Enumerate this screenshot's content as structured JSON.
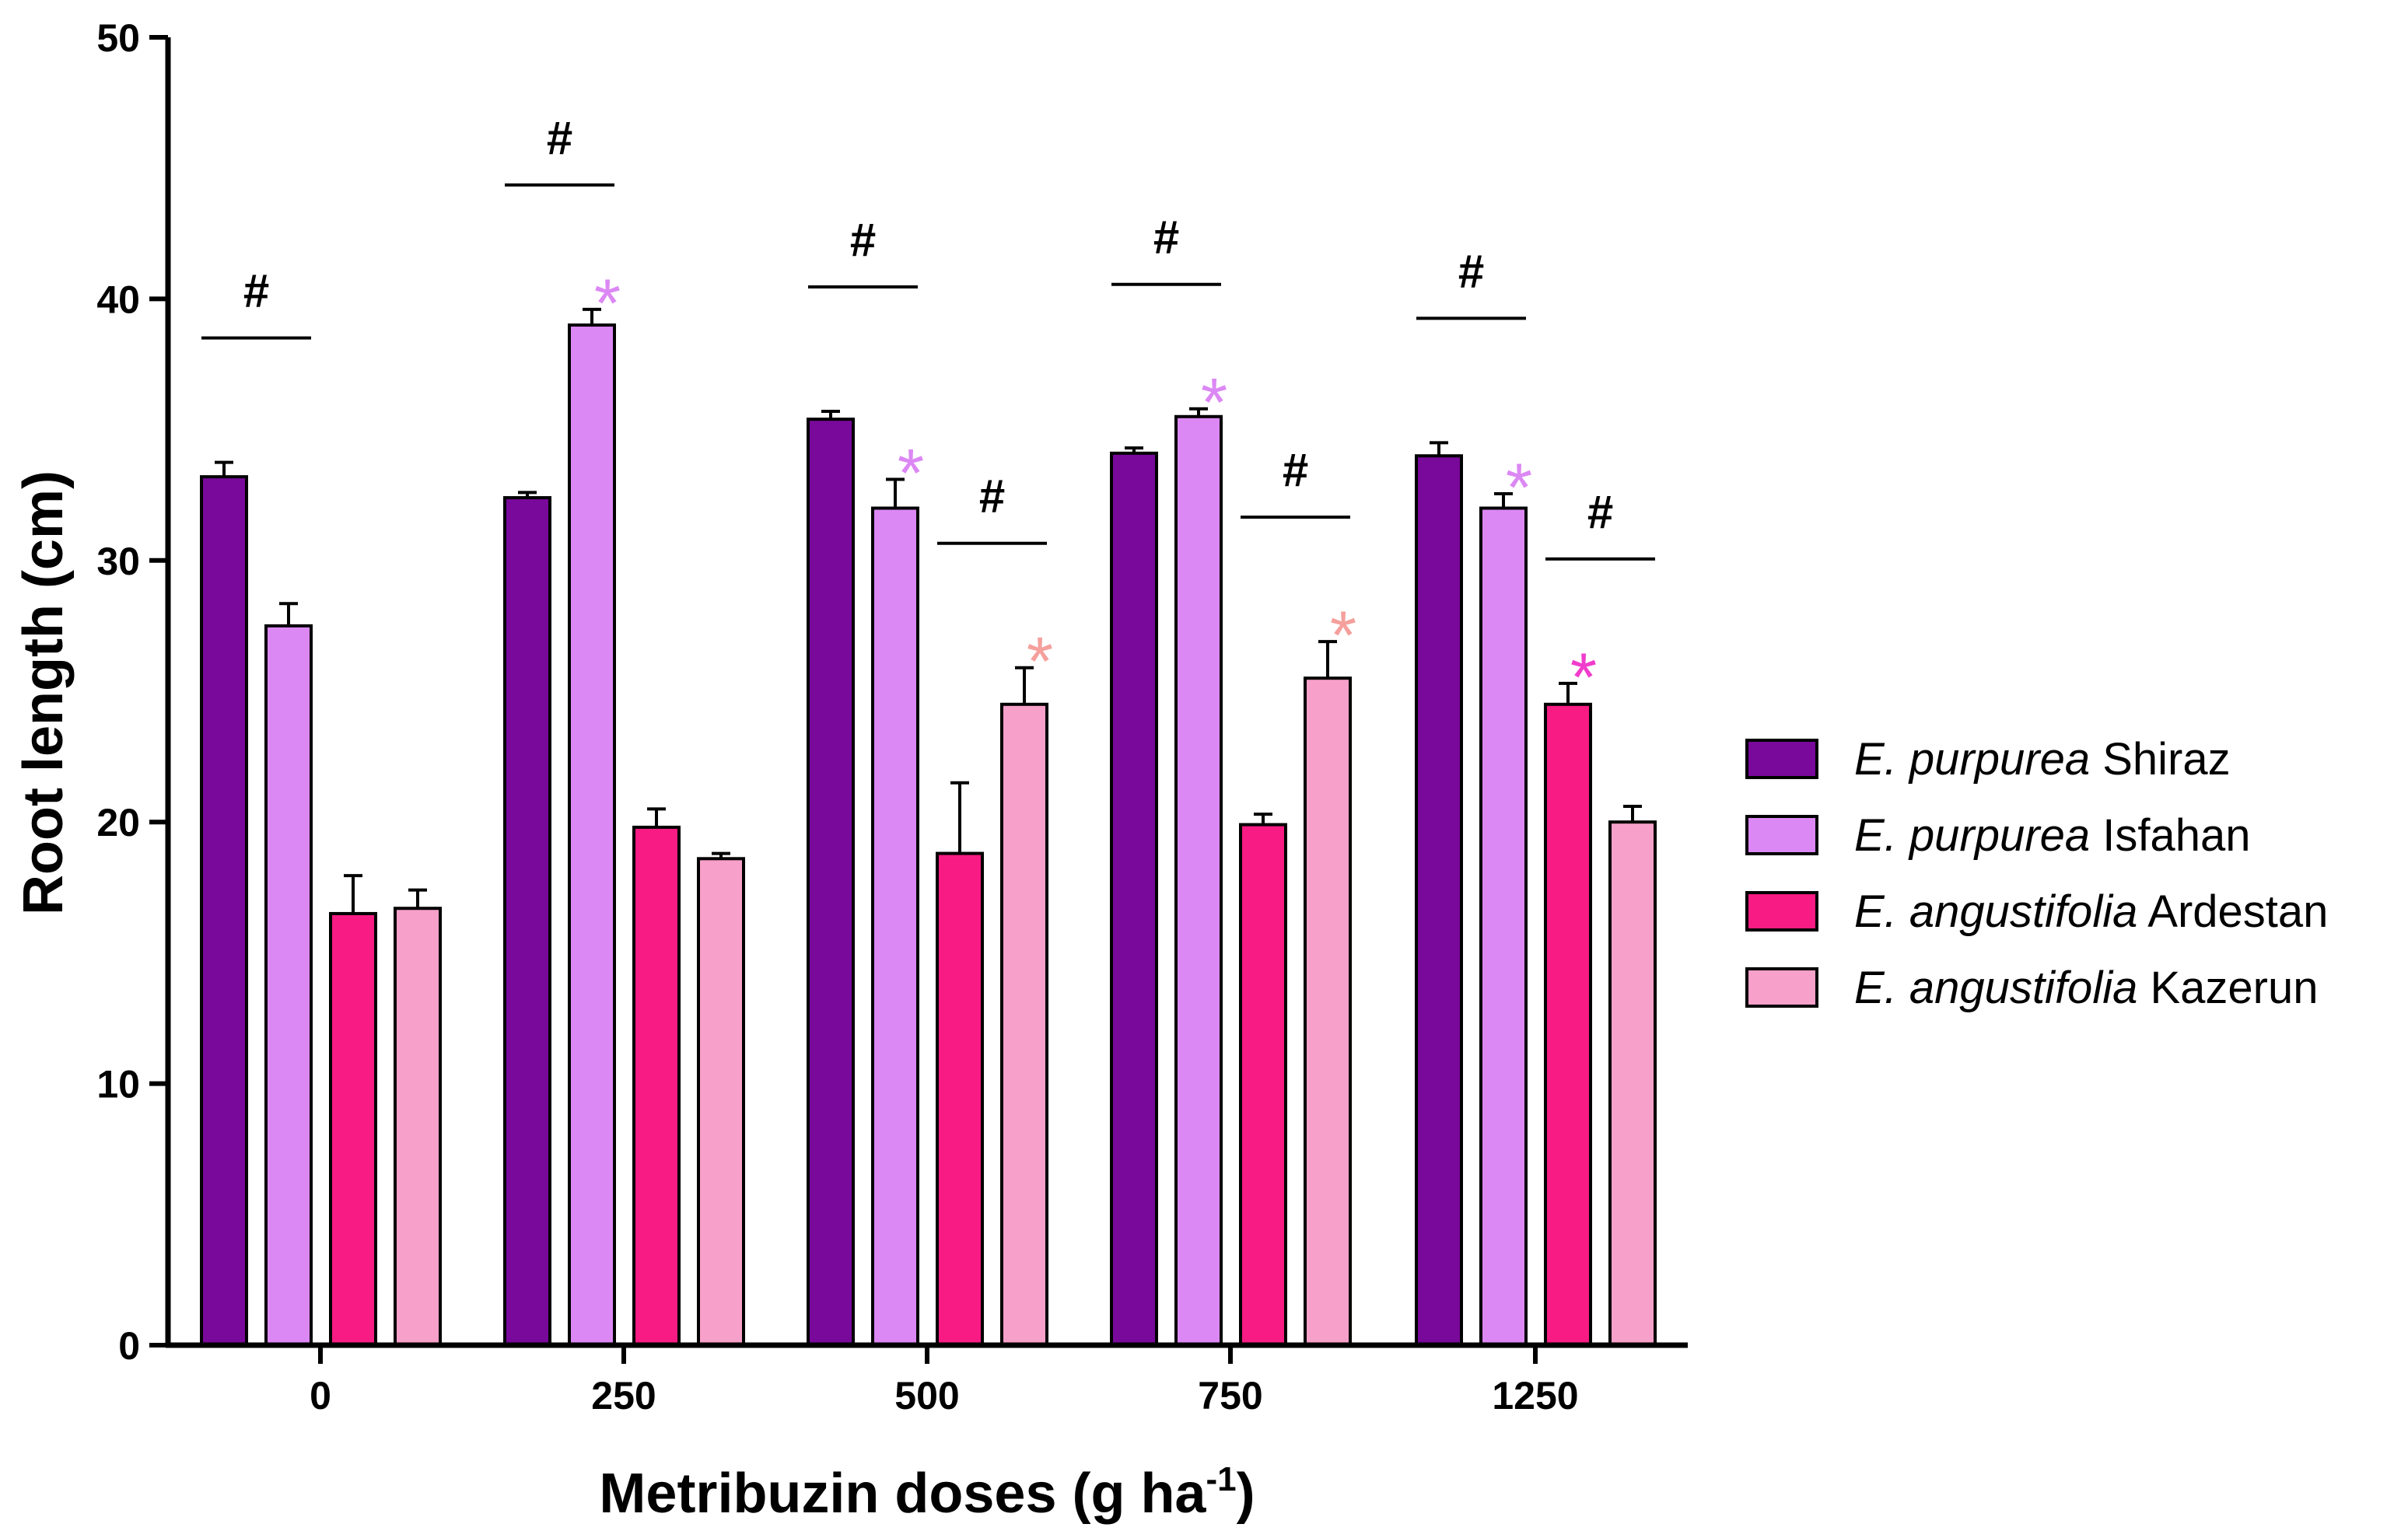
{
  "chart_data": {
    "type": "bar",
    "title": "",
    "xlabel": "Metribuzin doses (g ha",
    "xlabel_sup": "-1",
    "xlabel_close": ")",
    "ylabel": "Root length (cm)",
    "ylim": [
      0,
      50
    ],
    "yticks": [
      "0",
      "10",
      "20",
      "30",
      "40",
      "50"
    ],
    "categories": [
      "0",
      "250",
      "500",
      "750",
      "1250"
    ],
    "legend_position": "right",
    "series": [
      {
        "species": "E. purpurea",
        "site": "Shiraz",
        "color": "#78099a",
        "values": [
          33.2,
          32.4,
          35.4,
          34.1,
          34.0
        ],
        "errors": [
          0.55,
          0.2,
          0.3,
          0.2,
          0.5
        ]
      },
      {
        "species": "E. purpurea",
        "site": "Isfahan",
        "color": "#dc88f4",
        "values": [
          27.5,
          39.0,
          32.0,
          35.5,
          32.0
        ],
        "errors": [
          0.85,
          0.6,
          1.1,
          0.3,
          0.55
        ]
      },
      {
        "species": "E. angustifolia",
        "site": "Ardestan",
        "color": "#f71b83",
        "values": [
          16.5,
          19.8,
          18.8,
          19.9,
          24.5
        ],
        "errors": [
          1.45,
          0.7,
          2.7,
          0.4,
          0.8
        ]
      },
      {
        "species": "E. angustifolia",
        "site": "Kazerun",
        "color": "#f7a0c9",
        "values": [
          16.7,
          18.6,
          24.5,
          25.5,
          20.0
        ],
        "errors": [
          0.7,
          0.2,
          1.4,
          1.4,
          0.6
        ]
      }
    ],
    "hash_marks": [
      {
        "category": 0,
        "span": [
          0,
          1
        ],
        "label": "#"
      },
      {
        "category": 1,
        "span": [
          0,
          1
        ],
        "label": "#"
      },
      {
        "category": 2,
        "span": [
          0,
          1
        ],
        "label": "#"
      },
      {
        "category": 2,
        "span": [
          2,
          3
        ],
        "label": "#"
      },
      {
        "category": 3,
        "span": [
          0,
          1
        ],
        "label": "#"
      },
      {
        "category": 3,
        "span": [
          2,
          3
        ],
        "label": "#"
      },
      {
        "category": 4,
        "span": [
          0,
          1
        ],
        "label": "#"
      },
      {
        "category": 4,
        "span": [
          2,
          3
        ],
        "label": "#"
      }
    ],
    "significance_stars": [
      {
        "category": 1,
        "series": 1,
        "label": "*",
        "color": "#dc88f4"
      },
      {
        "category": 2,
        "series": 1,
        "label": "*",
        "color": "#dc88f4"
      },
      {
        "category": 2,
        "series": 3,
        "label": "*",
        "color": "#f5a09c"
      },
      {
        "category": 3,
        "series": 1,
        "label": "*",
        "color": "#dc88f4"
      },
      {
        "category": 3,
        "series": 3,
        "label": "*",
        "color": "#f5a09c"
      },
      {
        "category": 4,
        "series": 1,
        "label": "*",
        "color": "#dc88f4"
      },
      {
        "category": 4,
        "series": 2,
        "label": "*",
        "color": "#f03ccc"
      }
    ]
  }
}
